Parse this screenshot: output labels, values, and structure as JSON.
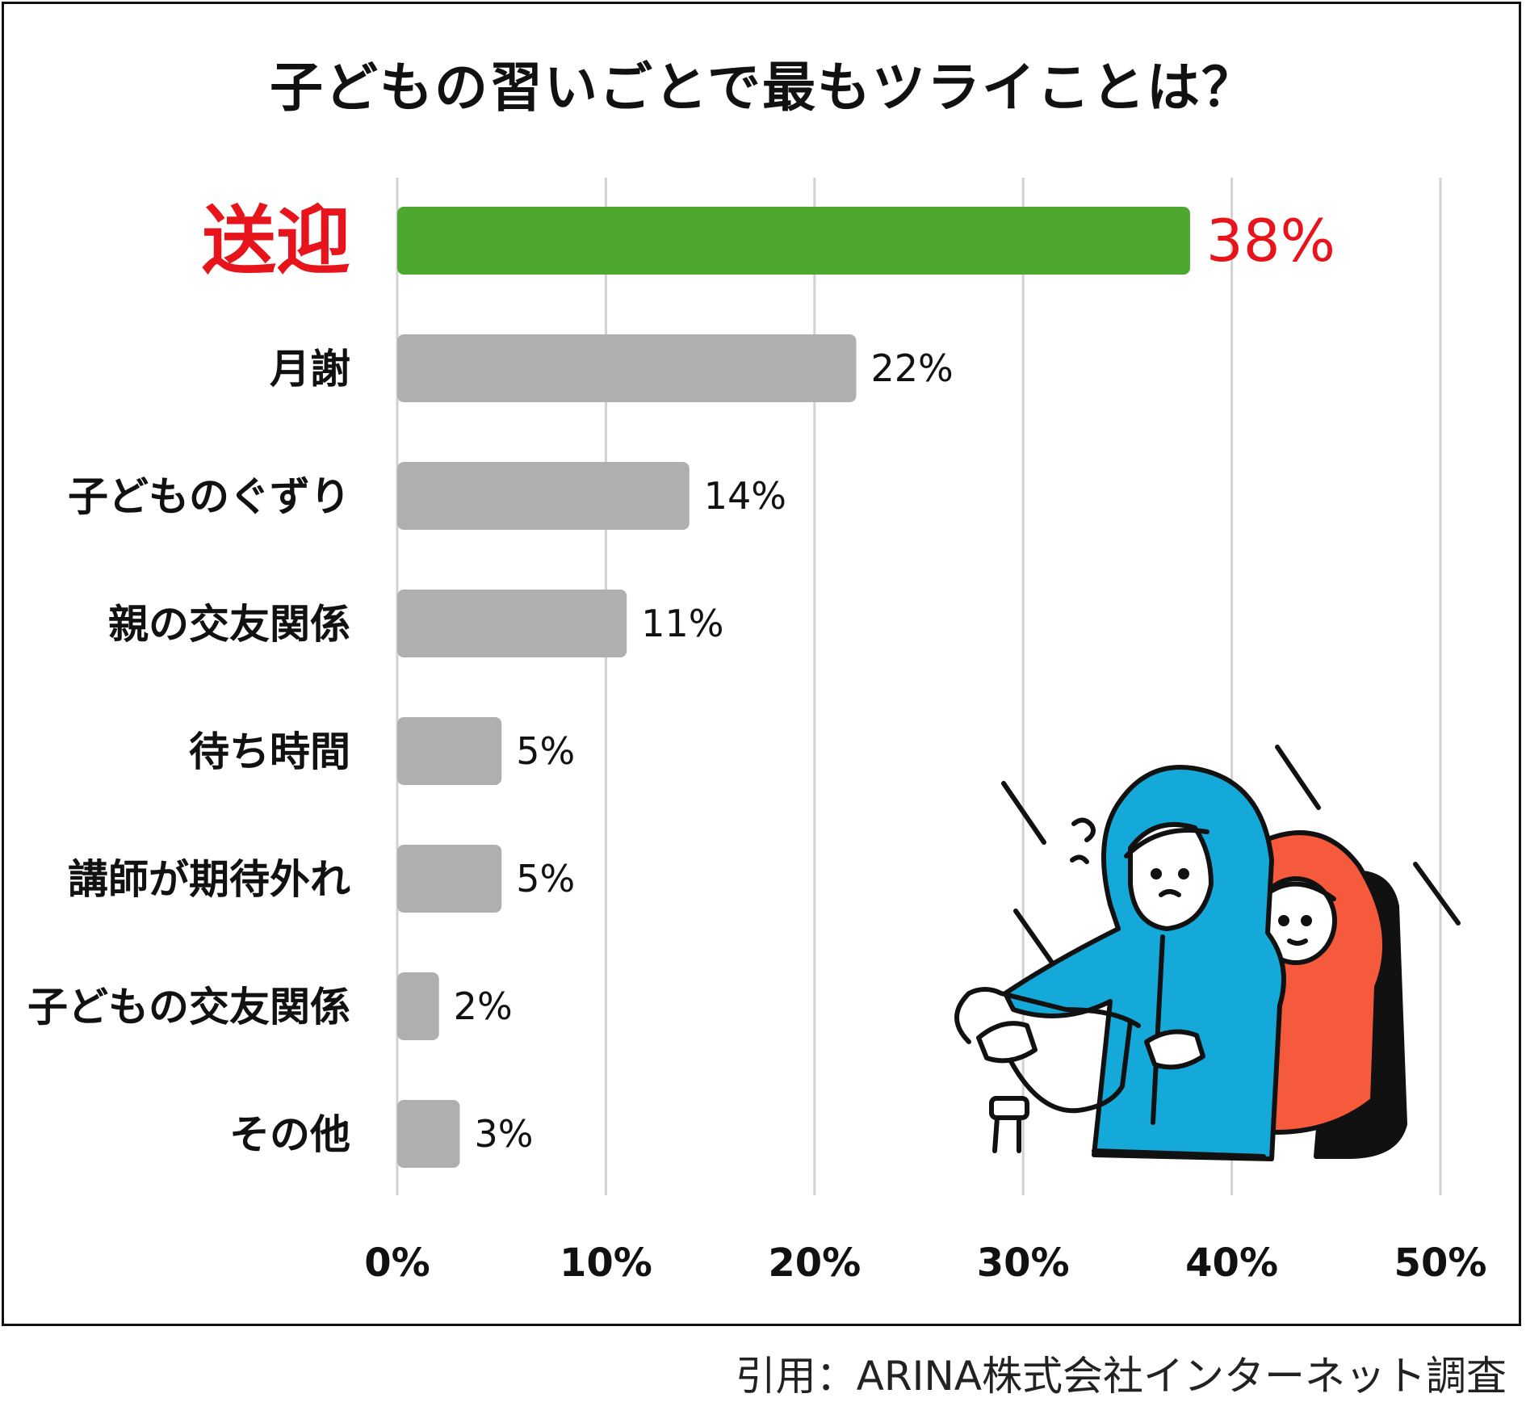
{
  "chart_data": {
    "type": "bar",
    "orientation": "horizontal",
    "title": "子どもの習いごとで最もツライことは？",
    "categories": [
      "送迎",
      "月謝",
      "子どものぐずり",
      "親の交友関係",
      "待ち時間",
      "講師が期待外れ",
      "子どもの交友関係",
      "その他"
    ],
    "values": [
      38,
      22,
      14,
      11,
      5,
      5,
      2,
      3
    ],
    "value_labels": [
      "38%",
      "22%",
      "14%",
      "11%",
      "5%",
      "5%",
      "2%",
      "3%"
    ],
    "highlight_index": 0,
    "xlim": [
      0,
      50
    ],
    "x_ticks": [
      0,
      10,
      20,
      30,
      40,
      50
    ],
    "x_tick_labels": [
      "0%",
      "10%",
      "20%",
      "30%",
      "40%",
      "50%"
    ],
    "grid": true,
    "colors": {
      "highlight_bar": "#4ea72e",
      "bar": "#afafaf",
      "highlight_text": "#e8141b",
      "grid": "#d2d2d2"
    }
  },
  "illustration": {
    "description_icon": "parent-and-child-in-raincoats-on-bicycle",
    "colors": {
      "parent_coat": "#14a9d9",
      "child_coat": "#f55a3c",
      "outline": "#111111"
    }
  },
  "source_note": "引用：ARINA株式会社インターネット調査"
}
